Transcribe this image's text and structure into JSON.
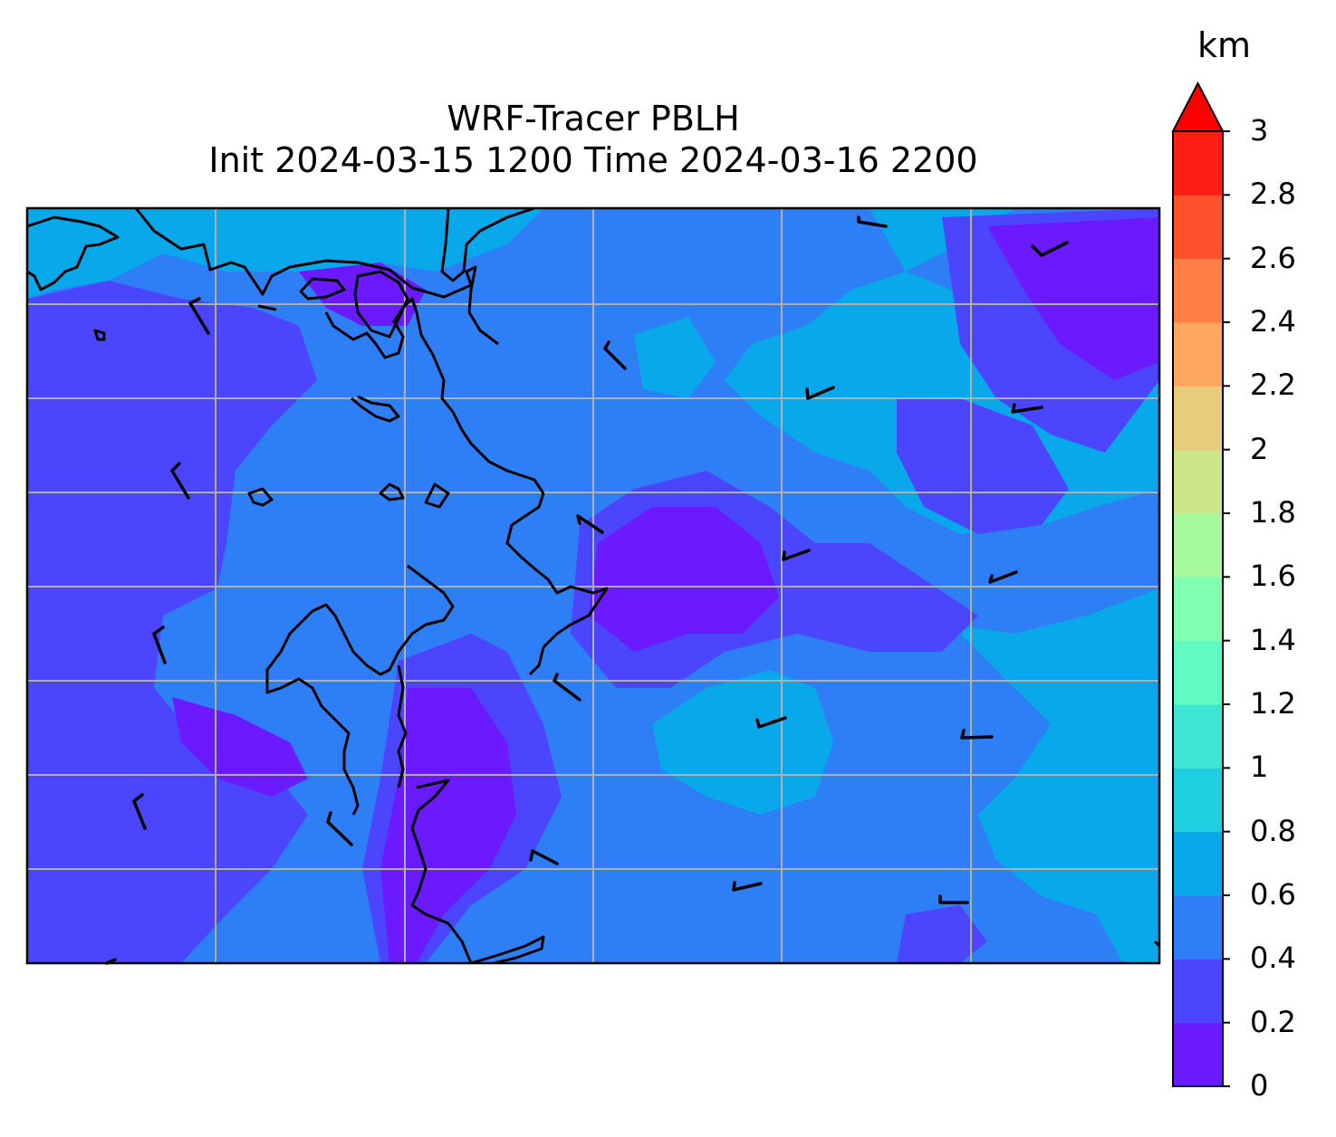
{
  "title": {
    "line1": "WRF-Tracer PBLH",
    "line2": "Init 2024-03-15 1200 Time 2024-03-16 2200"
  },
  "colorbar": {
    "unit_label": "km",
    "min": 0,
    "max": 3,
    "extend": "max",
    "tick_labels": [
      "0",
      "0.2",
      "0.4",
      "0.6",
      "0.8",
      "1",
      "1.2",
      "1.4",
      "1.6",
      "1.8",
      "2",
      "2.2",
      "2.4",
      "2.6",
      "2.8",
      "3"
    ],
    "level_colors": [
      "#6b1aff",
      "#4b46fd",
      "#2e7ff6",
      "#08a8ea",
      "#1ecfe0",
      "#3de6d2",
      "#60fbc2",
      "#80ffb1",
      "#a6f99c",
      "#cbe78a",
      "#e8cc79",
      "#fda65e",
      "#ff7f47",
      "#ff522c",
      "#ff1e14",
      "#ff0000"
    ]
  },
  "map": {
    "palette": {
      "low": "#6b1aff",
      "low_mid": "#4b46fd",
      "mid": "#2e7ff6",
      "high": "#08a8ea",
      "coast": "#000000",
      "grid": "#b0b0b0"
    },
    "gridlines": "on",
    "wind_barbs_shown": true
  }
}
